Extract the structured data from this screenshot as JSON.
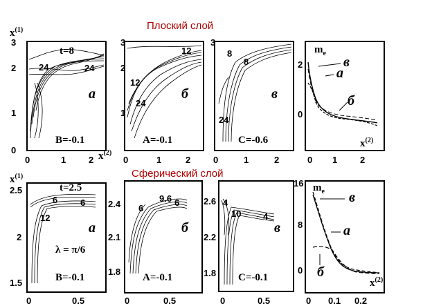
{
  "titles": {
    "top": "Плоский слой",
    "bottom": "Сферический слой"
  },
  "top": {
    "axis_y_label": "x",
    "axis_y_sup": "(1)",
    "axis_x_label": "x",
    "axis_x_sup": "(2)",
    "y_ticks": [
      "0",
      "1",
      "2",
      "3"
    ],
    "x_ticks": [
      "0",
      "1",
      "2"
    ],
    "panels": [
      {
        "letter": "а",
        "param": "B=-0.1",
        "time": "t=8",
        "labels": [
          "24",
          "24"
        ]
      },
      {
        "letter": "б",
        "param": "A=-0.1",
        "labels": [
          "12",
          "24",
          "12"
        ]
      },
      {
        "letter": "в",
        "param": "C=-0.6",
        "labels": [
          "8",
          "8",
          "24"
        ]
      }
    ],
    "me": {
      "label": "m",
      "label_sub": "e",
      "y_ticks": [
        "2",
        "0"
      ],
      "x_ticks": [
        "0",
        "1",
        "2"
      ],
      "x_label": "x",
      "x_sup": "(2)",
      "curve_labels": [
        "в",
        "а",
        "б"
      ]
    }
  },
  "bottom": {
    "axis_y_label": "x",
    "axis_y_sup": "(1)",
    "panel_y_ticks": [
      [
        "2.5",
        "2",
        "1.5"
      ],
      [
        "2.4",
        "2.1",
        "1.8"
      ],
      [
        "2.6",
        "2.2",
        "1.8"
      ]
    ],
    "x_ticks_a": [
      "0",
      "0.5"
    ],
    "x_ticks_b": [
      "0",
      "0.5"
    ],
    "x_ticks_c": [
      "0",
      "0.5"
    ],
    "panels": [
      {
        "letter": "а",
        "param": "B=-0.1",
        "time": "t=2.5",
        "lambda": "λ = π/6",
        "labels": [
          "6",
          "6",
          "12"
        ]
      },
      {
        "letter": "б",
        "param": "A=-0.1",
        "labels": [
          "6",
          "9.6",
          "6"
        ]
      },
      {
        "letter": "в",
        "param": "C=-0.1",
        "labels": [
          "4",
          "10",
          "4"
        ]
      }
    ],
    "me": {
      "label": "m",
      "label_sub": "e",
      "y_ticks": [
        "16",
        "8",
        "0"
      ],
      "x_ticks": [
        "0",
        "0.1",
        "0.2"
      ],
      "x_label": "x",
      "x_sup": "(2)",
      "curve_labels": [
        "в",
        "а",
        "б"
      ]
    }
  }
}
